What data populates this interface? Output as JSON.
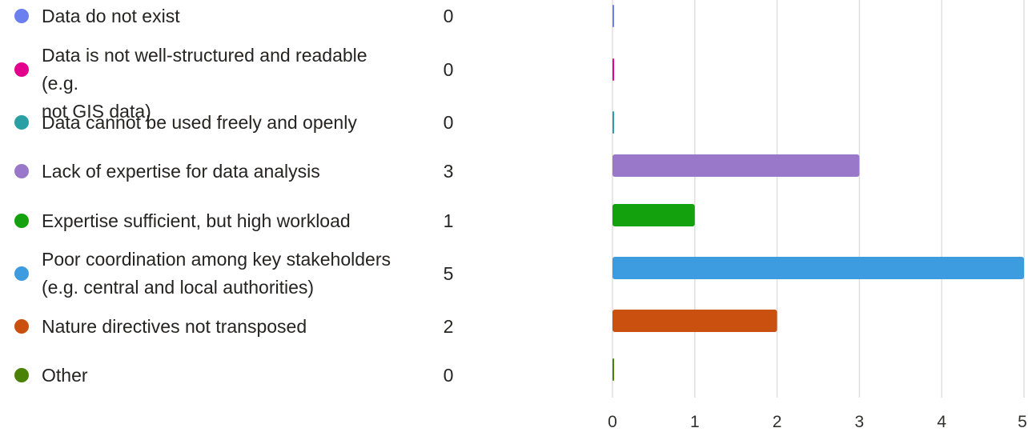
{
  "chart_data": {
    "type": "bar",
    "orientation": "horizontal",
    "categories": [
      "Data do not exist",
      "Data is not well-structured and readable (e.g. not GIS data)",
      "Data cannot be used freely and openly",
      "Lack of expertise for data analysis",
      "Expertise sufficient, but high workload",
      "Poor coordination among key stakeholders (e.g. central and local authorities)",
      "Nature directives not transposed",
      "Other"
    ],
    "label_lines": [
      [
        "Data do not exist"
      ],
      [
        "Data is not well-structured and readable (e.g.",
        "not GIS data)"
      ],
      [
        "Data cannot be used freely and openly"
      ],
      [
        "Lack of expertise for data analysis"
      ],
      [
        "Expertise sufficient, but high workload"
      ],
      [
        "Poor coordination among key stakeholders",
        "(e.g. central and local authorities)"
      ],
      [
        "Nature directives not transposed"
      ],
      [
        "Other"
      ]
    ],
    "values": [
      0,
      0,
      0,
      3,
      1,
      5,
      2,
      0
    ],
    "colors": [
      "#6b7ff0",
      "#e3008c",
      "#2aa0a4",
      "#9a78c9",
      "#13a10e",
      "#3d9be0",
      "#ca5010",
      "#498205"
    ],
    "xlim": [
      0,
      5
    ],
    "x_ticks": [
      "0",
      "1",
      "2",
      "3",
      "4",
      "5"
    ],
    "grid": true,
    "legend": "left"
  }
}
